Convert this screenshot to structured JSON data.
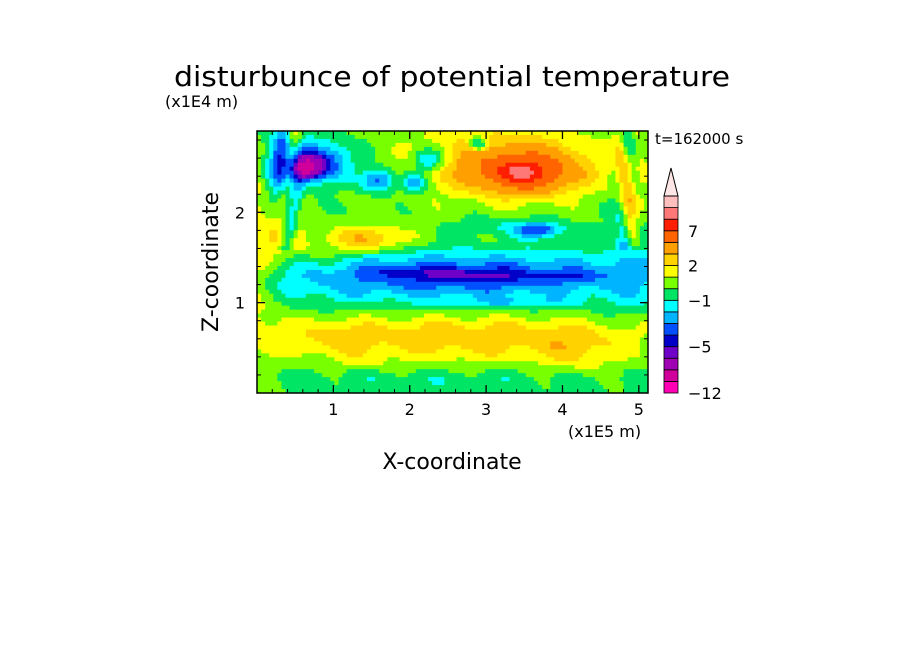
{
  "chart_data": {
    "type": "heatmap",
    "title": "disturbunce of potential temperature",
    "xlabel": "X-coordinate",
    "ylabel": "Z-coordinate",
    "x_unit": "(x1E5 m)",
    "y_unit": "(x1E4 m)",
    "time_label": "t=162000 s",
    "xlim": [
      0,
      5.12
    ],
    "ylim": [
      0,
      2.9
    ],
    "x_ticks": [
      1,
      2,
      3,
      4,
      5
    ],
    "y_ticks": [
      1,
      2
    ],
    "x_tick_labels": [
      "1",
      "2",
      "3",
      "4",
      "5"
    ],
    "y_tick_labels": [
      "1",
      "2"
    ],
    "colorbar": {
      "colors": [
        "#ff00b4",
        "#d2009b",
        "#a000b4",
        "#6e00c8",
        "#0000c8",
        "#0050ff",
        "#00b4ff",
        "#00ffff",
        "#00e664",
        "#78ff00",
        "#ffff00",
        "#ffd200",
        "#ffa000",
        "#ff6400",
        "#ff1e00",
        "#ff7878",
        "#ffbebe"
      ],
      "boundaries": [
        -12,
        -10,
        -8,
        -6,
        -5,
        -4,
        -3,
        -2,
        -1,
        0,
        1,
        2,
        3,
        5,
        7,
        8,
        9,
        10
      ],
      "labels": [
        {
          "text": "7",
          "value": 7
        },
        {
          "text": "2",
          "value": 2
        },
        {
          "text": "−1",
          "value": -1
        },
        {
          "text": "−5",
          "value": -5
        },
        {
          "text": "−12",
          "value": -12
        }
      ],
      "extend": "max"
    },
    "features": [
      {
        "x": 0.0,
        "z": 1.5,
        "v": 2,
        "sx": 0.35,
        "sz": 0.9
      },
      {
        "x": 2.6,
        "z": 2.2,
        "v": 0.4,
        "sx": 2.6,
        "sz": 0.55
      },
      {
        "x": 3.5,
        "z": 2.42,
        "v": 5.5,
        "sx": 0.65,
        "sz": 0.22
      },
      {
        "x": 3.3,
        "z": 2.6,
        "v": 3.2,
        "sx": 1.2,
        "sz": 0.35
      },
      {
        "x": 0.8,
        "z": 2.55,
        "v": -5,
        "sx": 0.4,
        "sz": 0.22
      },
      {
        "x": 0.65,
        "z": 2.48,
        "v": -5.5,
        "sx": 0.2,
        "sz": 0.12
      },
      {
        "x": 1.6,
        "z": 2.35,
        "v": -4,
        "sx": 0.22,
        "sz": 0.13
      },
      {
        "x": 2.25,
        "z": 2.58,
        "v": -3.5,
        "sx": 0.22,
        "sz": 0.12
      },
      {
        "x": 2.05,
        "z": 2.32,
        "v": -3.5,
        "sx": 0.15,
        "sz": 0.1
      },
      {
        "x": 2.9,
        "z": 2.75,
        "v": -4,
        "sx": 0.12,
        "sz": 0.08
      },
      {
        "x": 0.3,
        "z": 2.5,
        "v": -3.5,
        "sx": 0.18,
        "sz": 0.4
      },
      {
        "x": 1.5,
        "z": 1.7,
        "v": 3,
        "sx": 0.5,
        "sz": 0.14
      },
      {
        "x": 0.7,
        "z": 1.55,
        "v": 1.2,
        "sx": 0.6,
        "sz": 0.25
      },
      {
        "x": 3.3,
        "z": 1.85,
        "v": -1.2,
        "sx": 0.7,
        "sz": 0.1
      },
      {
        "x": 3.7,
        "z": 1.8,
        "v": -3.5,
        "sx": 0.3,
        "sz": 0.08
      },
      {
        "x": 2.7,
        "z": 1.25,
        "v": -2.4,
        "sx": 3.0,
        "sz": 0.32
      },
      {
        "x": 2.5,
        "z": 1.33,
        "v": -1.6,
        "sx": 2.6,
        "sz": 0.22
      },
      {
        "x": 2.3,
        "z": 1.33,
        "v": -1.2,
        "sx": 0.7,
        "sz": 0.07
      },
      {
        "x": 3.0,
        "z": 1.3,
        "v": -1.3,
        "sx": 0.55,
        "sz": 0.06
      },
      {
        "x": 4.1,
        "z": 1.3,
        "v": -1.1,
        "sx": 0.55,
        "sz": 0.06
      },
      {
        "x": 3.4,
        "z": 1.0,
        "v": -1.2,
        "sx": 0.8,
        "sz": 0.05
      },
      {
        "x": 2.7,
        "z": 0.62,
        "v": 2.8,
        "sx": 2.4,
        "sz": 0.28
      },
      {
        "x": 1.0,
        "z": 0.6,
        "v": 1.0,
        "sx": 0.5,
        "sz": 0.2
      },
      {
        "x": 4.2,
        "z": 0.45,
        "v": 1.2,
        "sx": 0.5,
        "sz": 0.25
      },
      {
        "x": 2.5,
        "z": 0.15,
        "v": -0.8,
        "sx": 2.5,
        "sz": 0.12
      },
      {
        "x": 1.4,
        "z": 0.35,
        "v": 0.6,
        "sx": 0.3,
        "sz": 0.08
      },
      {
        "x": 4.9,
        "z": 1.5,
        "v": -0.9,
        "sx": 0.3,
        "sz": 0.6
      },
      {
        "x": 4.95,
        "z": 2.3,
        "v": 1.5,
        "sx": 0.18,
        "sz": 0.5
      }
    ]
  }
}
